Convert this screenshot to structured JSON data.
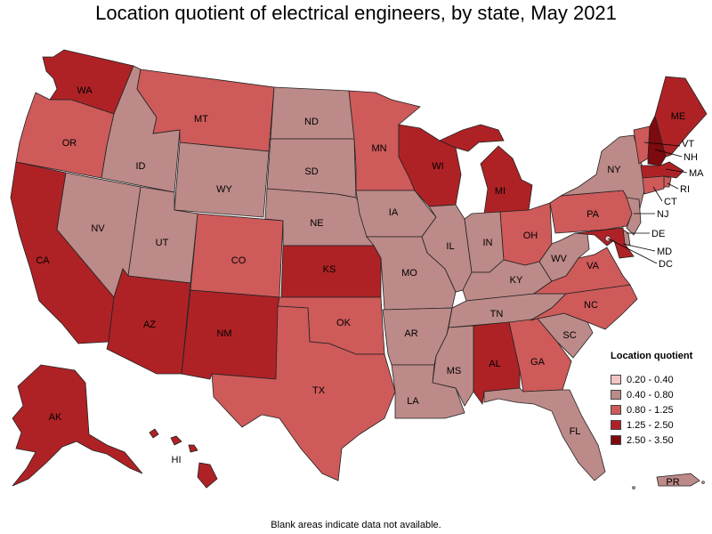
{
  "title": "Location quotient of electrical engineers, by state, May 2021",
  "legend": {
    "title": "Location quotient",
    "bins": [
      {
        "label": "0.20 - 0.40",
        "color": "#f4c4c4"
      },
      {
        "label": "0.40 - 0.80",
        "color": "#bc8a88"
      },
      {
        "label": "0.80 - 1.25",
        "color": "#ce5a5a"
      },
      {
        "label": "1.25 - 2.50",
        "color": "#ae2226"
      },
      {
        "label": "2.50 - 3.50",
        "color": "#7d0a0e"
      }
    ]
  },
  "footnote": "Blank areas indicate data not available.",
  "states": {
    "WA": {
      "label": "WA",
      "bin": 3
    },
    "OR": {
      "label": "OR",
      "bin": 2
    },
    "CA": {
      "label": "CA",
      "bin": 3
    },
    "ID": {
      "label": "ID",
      "bin": 1
    },
    "NV": {
      "label": "NV",
      "bin": 1
    },
    "MT": {
      "label": "MT",
      "bin": 2
    },
    "WY": {
      "label": "WY",
      "bin": 1
    },
    "UT": {
      "label": "UT",
      "bin": 1
    },
    "AZ": {
      "label": "AZ",
      "bin": 3
    },
    "CO": {
      "label": "CO",
      "bin": 2
    },
    "NM": {
      "label": "NM",
      "bin": 3
    },
    "ND": {
      "label": "ND",
      "bin": 1
    },
    "SD": {
      "label": "SD",
      "bin": 1
    },
    "NE": {
      "label": "NE",
      "bin": 1
    },
    "KS": {
      "label": "KS",
      "bin": 3
    },
    "OK": {
      "label": "OK",
      "bin": 2
    },
    "TX": {
      "label": "TX",
      "bin": 2
    },
    "MN": {
      "label": "MN",
      "bin": 2
    },
    "IA": {
      "label": "IA",
      "bin": 1
    },
    "MO": {
      "label": "MO",
      "bin": 1
    },
    "AR": {
      "label": "AR",
      "bin": 1
    },
    "LA": {
      "label": "LA",
      "bin": 1
    },
    "WI": {
      "label": "WI",
      "bin": 3
    },
    "IL": {
      "label": "IL",
      "bin": 1
    },
    "MI": {
      "label": "MI",
      "bin": 3
    },
    "IN": {
      "label": "IN",
      "bin": 1
    },
    "OH": {
      "label": "OH",
      "bin": 2
    },
    "KY": {
      "label": "KY",
      "bin": 1
    },
    "TN": {
      "label": "TN",
      "bin": 1
    },
    "MS": {
      "label": "MS",
      "bin": 1
    },
    "AL": {
      "label": "AL",
      "bin": 3
    },
    "GA": {
      "label": "GA",
      "bin": 2
    },
    "FL": {
      "label": "FL",
      "bin": 1
    },
    "SC": {
      "label": "SC",
      "bin": 1
    },
    "NC": {
      "label": "NC",
      "bin": 2
    },
    "VA": {
      "label": "VA",
      "bin": 2
    },
    "WV": {
      "label": "WV",
      "bin": 1
    },
    "PA": {
      "label": "PA",
      "bin": 2
    },
    "NY": {
      "label": "NY",
      "bin": 1
    },
    "ME": {
      "label": "ME",
      "bin": 3
    },
    "VT": {
      "label": "VT",
      "bin": 2
    },
    "NH": {
      "label": "NH",
      "bin": 4
    },
    "MA": {
      "label": "MA",
      "bin": 3
    },
    "RI": {
      "label": "RI",
      "bin": 2
    },
    "CT": {
      "label": "CT",
      "bin": 2
    },
    "NJ": {
      "label": "NJ",
      "bin": 1
    },
    "DE": {
      "label": "DE",
      "bin": 1
    },
    "MD": {
      "label": "MD",
      "bin": 3
    },
    "DC": {
      "label": "DC",
      "bin": 0
    },
    "AK": {
      "label": "AK",
      "bin": 3
    },
    "HI": {
      "label": "HI",
      "bin": 3
    },
    "PR": {
      "label": "PR",
      "bin": 1
    }
  }
}
